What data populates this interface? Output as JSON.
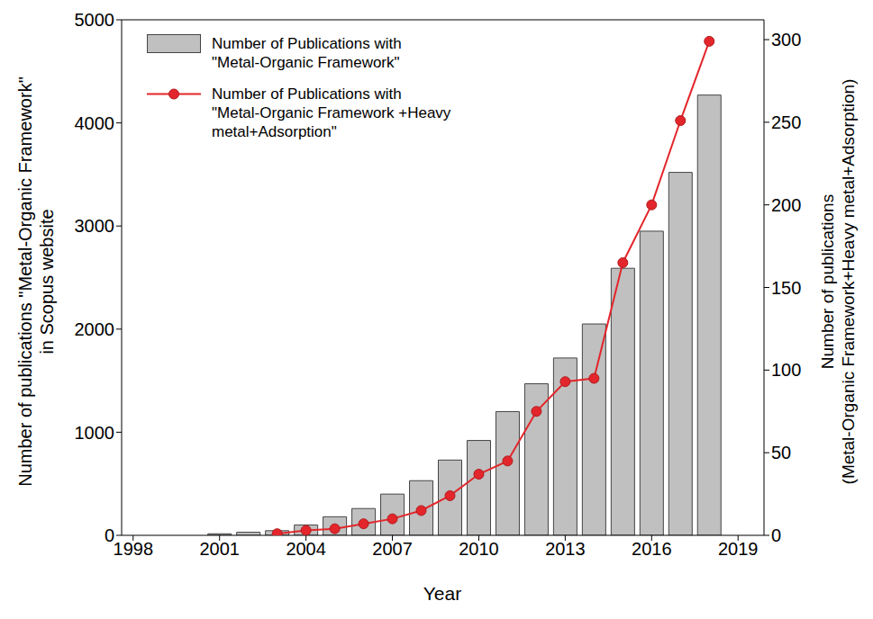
{
  "chart_data": {
    "type": "bar",
    "xlabel": "Year",
    "ylabel": "Number of publications \"Metal-Organic Framework\" in Scopus website",
    "y2label": "Number of publications (Metal-Organic Framework+Heavy metal+Adsorption)",
    "x": [
      2001,
      2002,
      2003,
      2004,
      2005,
      2006,
      2007,
      2008,
      2009,
      2010,
      2011,
      2012,
      2013,
      2014,
      2015,
      2016,
      2017,
      2018
    ],
    "xlim": [
      1997.6,
      2019.9
    ],
    "xticks": [
      1998,
      2001,
      2004,
      2007,
      2010,
      2013,
      2016,
      2019
    ],
    "ylim": [
      0,
      5000
    ],
    "yticks": [
      0,
      1000,
      2000,
      3000,
      4000,
      5000
    ],
    "y2lim": [
      0,
      312
    ],
    "y2ticks": [
      0,
      50,
      100,
      150,
      200,
      250,
      300
    ],
    "grid": false,
    "legend": "upper left",
    "series": [
      {
        "name": "Number of Publications with \"Metal-Organic Framework\"",
        "type": "bar",
        "color": "#c0c0c0",
        "values": [
          15,
          30,
          45,
          100,
          180,
          260,
          400,
          530,
          730,
          920,
          1200,
          1470,
          1720,
          2050,
          2590,
          2950,
          3520,
          4270
        ]
      },
      {
        "name": "Number of Publications with \"Metal-Organic Framework +Heavy metal+Adsorption\"",
        "type": "line",
        "color": "#e3262b",
        "marker": "circle",
        "axis": "y2",
        "values": [
          null,
          null,
          1,
          3,
          4,
          7,
          10,
          15,
          24,
          37,
          45,
          75,
          93,
          95,
          165,
          200,
          251,
          299
        ]
      }
    ]
  }
}
